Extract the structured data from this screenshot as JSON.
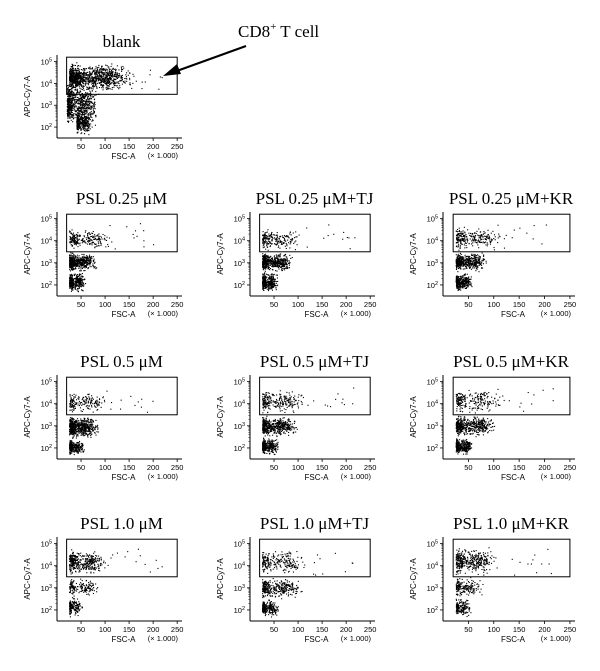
{
  "figure": {
    "annotation": {
      "text": "CD8",
      "superscript": "+",
      "suffix": " T cell"
    }
  },
  "chart_data": [
    {
      "type": "scatter",
      "title": "blank",
      "xlabel": "FSC-A",
      "ylabel": "APC-Cy7-A",
      "x_ticks": [
        50,
        100,
        150,
        200,
        250
      ],
      "x_multiplier": "(× 1.000)",
      "y_ticks": [
        "10^2",
        "10^3",
        "10^4",
        "10^5"
      ],
      "xlim": [
        0,
        260
      ],
      "ylim": [
        1.5,
        5.3
      ],
      "grid": false,
      "y_scale": "log",
      "gate": {
        "x": [
          20,
          250
        ],
        "y": [
          3.5,
          5.2
        ]
      },
      "clusters": [
        {
          "x": [
            25,
            170
          ],
          "y": [
            3.6,
            5.0
          ],
          "n": 1100
        },
        {
          "x": [
            20,
            90
          ],
          "y": [
            2.0,
            4.2
          ],
          "n": 750
        },
        {
          "x": [
            40,
            75
          ],
          "y": [
            1.6,
            2.8
          ],
          "n": 350
        }
      ]
    },
    {
      "type": "scatter",
      "title": "PSL 0.25 μM",
      "xlabel": "FSC-A",
      "ylabel": "APC-Cy7-A",
      "x_ticks": [
        50,
        100,
        150,
        200,
        250
      ],
      "x_multiplier": "(× 1.000)",
      "y_ticks": [
        "10^2",
        "10^3",
        "10^4",
        "10^5"
      ],
      "xlim": [
        0,
        260
      ],
      "ylim": [
        1.5,
        5.3
      ],
      "grid": false,
      "y_scale": "log",
      "gate": {
        "x": [
          20,
          250
        ],
        "y": [
          3.5,
          5.2
        ]
      },
      "clusters": [
        {
          "x": [
            25,
            120
          ],
          "y": [
            3.55,
            4.6
          ],
          "n": 230
        },
        {
          "x": [
            25,
            85
          ],
          "y": [
            2.6,
            3.5
          ],
          "n": 550
        },
        {
          "x": [
            25,
            60
          ],
          "y": [
            1.7,
            2.6
          ],
          "n": 380
        }
      ]
    },
    {
      "type": "scatter",
      "title": "PSL 0.25 μM+TJ",
      "xlabel": "FSC-A",
      "ylabel": "APC-Cy7-A",
      "x_ticks": [
        50,
        100,
        150,
        200,
        250
      ],
      "x_multiplier": "(× 1.000)",
      "y_ticks": [
        "10^2",
        "10^3",
        "10^4",
        "10^5"
      ],
      "xlim": [
        0,
        260
      ],
      "ylim": [
        1.5,
        5.3
      ],
      "grid": false,
      "y_scale": "log",
      "gate": {
        "x": [
          20,
          250
        ],
        "y": [
          3.5,
          5.2
        ]
      },
      "clusters": [
        {
          "x": [
            25,
            110
          ],
          "y": [
            3.55,
            4.6
          ],
          "n": 220
        },
        {
          "x": [
            25,
            90
          ],
          "y": [
            2.6,
            3.5
          ],
          "n": 520
        },
        {
          "x": [
            25,
            60
          ],
          "y": [
            1.7,
            2.6
          ],
          "n": 360
        }
      ]
    },
    {
      "type": "scatter",
      "title": "PSL 0.25 μM+KR",
      "xlabel": "FSC-A",
      "ylabel": "APC-Cy7-A",
      "x_ticks": [
        50,
        100,
        150,
        200,
        250
      ],
      "x_multiplier": "(× 1.000)",
      "y_ticks": [
        "10^2",
        "10^3",
        "10^4",
        "10^5"
      ],
      "xlim": [
        0,
        260
      ],
      "ylim": [
        1.5,
        5.3
      ],
      "grid": false,
      "y_scale": "log",
      "gate": {
        "x": [
          20,
          250
        ],
        "y": [
          3.5,
          5.2
        ]
      },
      "clusters": [
        {
          "x": [
            25,
            120
          ],
          "y": [
            3.55,
            4.7
          ],
          "n": 260
        },
        {
          "x": [
            25,
            90
          ],
          "y": [
            2.6,
            3.5
          ],
          "n": 500
        },
        {
          "x": [
            25,
            60
          ],
          "y": [
            1.7,
            2.6
          ],
          "n": 340
        }
      ]
    },
    {
      "type": "scatter",
      "title": "PSL 0.5 μM",
      "xlabel": "FSC-A",
      "ylabel": "APC-Cy7-A",
      "x_ticks": [
        50,
        100,
        150,
        200,
        250
      ],
      "x_multiplier": "(× 1.000)",
      "y_ticks": [
        "10^2",
        "10^3",
        "10^4",
        "10^5"
      ],
      "xlim": [
        0,
        260
      ],
      "ylim": [
        1.5,
        5.3
      ],
      "grid": false,
      "y_scale": "log",
      "gate": {
        "x": [
          20,
          250
        ],
        "y": [
          3.5,
          5.2
        ]
      },
      "clusters": [
        {
          "x": [
            25,
            110
          ],
          "y": [
            3.55,
            4.6
          ],
          "n": 180
        },
        {
          "x": [
            25,
            90
          ],
          "y": [
            2.4,
            3.5
          ],
          "n": 650
        },
        {
          "x": [
            25,
            60
          ],
          "y": [
            1.7,
            2.4
          ],
          "n": 300
        }
      ]
    },
    {
      "type": "scatter",
      "title": "PSL 0.5 μM+TJ",
      "xlabel": "FSC-A",
      "ylabel": "APC-Cy7-A",
      "x_ticks": [
        50,
        100,
        150,
        200,
        250
      ],
      "x_multiplier": "(× 1.000)",
      "y_ticks": [
        "10^2",
        "10^3",
        "10^4",
        "10^5"
      ],
      "xlim": [
        0,
        260
      ],
      "ylim": [
        1.5,
        5.3
      ],
      "grid": false,
      "y_scale": "log",
      "gate": {
        "x": [
          20,
          250
        ],
        "y": [
          3.5,
          5.2
        ]
      },
      "clusters": [
        {
          "x": [
            25,
            120
          ],
          "y": [
            3.55,
            4.7
          ],
          "n": 260
        },
        {
          "x": [
            25,
            100
          ],
          "y": [
            2.5,
            3.5
          ],
          "n": 540
        },
        {
          "x": [
            25,
            60
          ],
          "y": [
            1.7,
            2.5
          ],
          "n": 320
        }
      ]
    },
    {
      "type": "scatter",
      "title": "PSL 0.5 μM+KR",
      "xlabel": "FSC-A",
      "ylabel": "APC-Cy7-A",
      "x_ticks": [
        50,
        100,
        150,
        200,
        250
      ],
      "x_multiplier": "(× 1.000)",
      "y_ticks": [
        "10^2",
        "10^3",
        "10^4",
        "10^5"
      ],
      "xlim": [
        0,
        260
      ],
      "ylim": [
        1.5,
        5.3
      ],
      "grid": false,
      "y_scale": "log",
      "gate": {
        "x": [
          20,
          250
        ],
        "y": [
          3.5,
          5.2
        ]
      },
      "clusters": [
        {
          "x": [
            25,
            120
          ],
          "y": [
            3.55,
            4.8
          ],
          "n": 240
        },
        {
          "x": [
            25,
            110
          ],
          "y": [
            2.5,
            3.5
          ],
          "n": 520
        },
        {
          "x": [
            25,
            60
          ],
          "y": [
            1.7,
            2.5
          ],
          "n": 320
        }
      ]
    },
    {
      "type": "scatter",
      "title": "PSL 1.0 μM",
      "xlabel": "FSC-A",
      "ylabel": "APC-Cy7-A",
      "x_ticks": [
        50,
        100,
        150,
        200,
        250
      ],
      "x_multiplier": "(× 1.000)",
      "y_ticks": [
        "10^2",
        "10^3",
        "10^4",
        "10^5"
      ],
      "xlim": [
        0,
        260
      ],
      "ylim": [
        1.5,
        5.3
      ],
      "grid": false,
      "y_scale": "log",
      "gate": {
        "x": [
          20,
          250
        ],
        "y": [
          3.5,
          5.2
        ]
      },
      "clusters": [
        {
          "x": [
            25,
            110
          ],
          "y": [
            3.55,
            4.8
          ],
          "n": 380
        },
        {
          "x": [
            25,
            90
          ],
          "y": [
            2.6,
            3.5
          ],
          "n": 170
        },
        {
          "x": [
            25,
            55
          ],
          "y": [
            1.7,
            2.6
          ],
          "n": 160
        }
      ]
    },
    {
      "type": "scatter",
      "title": "PSL 1.0 μM+TJ",
      "xlabel": "FSC-A",
      "ylabel": "APC-Cy7-A",
      "x_ticks": [
        50,
        100,
        150,
        200,
        250
      ],
      "x_multiplier": "(× 1.000)",
      "y_ticks": [
        "10^2",
        "10^3",
        "10^4",
        "10^5"
      ],
      "xlim": [
        0,
        260
      ],
      "ylim": [
        1.5,
        5.3
      ],
      "grid": false,
      "y_scale": "log",
      "gate": {
        "x": [
          20,
          250
        ],
        "y": [
          3.5,
          5.2
        ]
      },
      "clusters": [
        {
          "x": [
            25,
            120
          ],
          "y": [
            3.55,
            4.8
          ],
          "n": 240
        },
        {
          "x": [
            25,
            110
          ],
          "y": [
            2.5,
            3.5
          ],
          "n": 360
        },
        {
          "x": [
            25,
            60
          ],
          "y": [
            1.7,
            2.5
          ],
          "n": 260
        }
      ]
    },
    {
      "type": "scatter",
      "title": "PSL 1.0 μM+KR",
      "xlabel": "FSC-A",
      "ylabel": "APC-Cy7-A",
      "x_ticks": [
        50,
        100,
        150,
        200,
        250
      ],
      "x_multiplier": "(× 1.000)",
      "y_ticks": [
        "10^2",
        "10^3",
        "10^4",
        "10^5"
      ],
      "xlim": [
        0,
        260
      ],
      "ylim": [
        1.5,
        5.3
      ],
      "grid": false,
      "y_scale": "log",
      "gate": {
        "x": [
          20,
          250
        ],
        "y": [
          3.5,
          5.2
        ]
      },
      "clusters": [
        {
          "x": [
            25,
            110
          ],
          "y": [
            3.55,
            4.9
          ],
          "n": 400
        },
        {
          "x": [
            25,
            80
          ],
          "y": [
            2.6,
            3.5
          ],
          "n": 180
        },
        {
          "x": [
            25,
            55
          ],
          "y": [
            1.7,
            2.6
          ],
          "n": 180
        }
      ]
    }
  ]
}
